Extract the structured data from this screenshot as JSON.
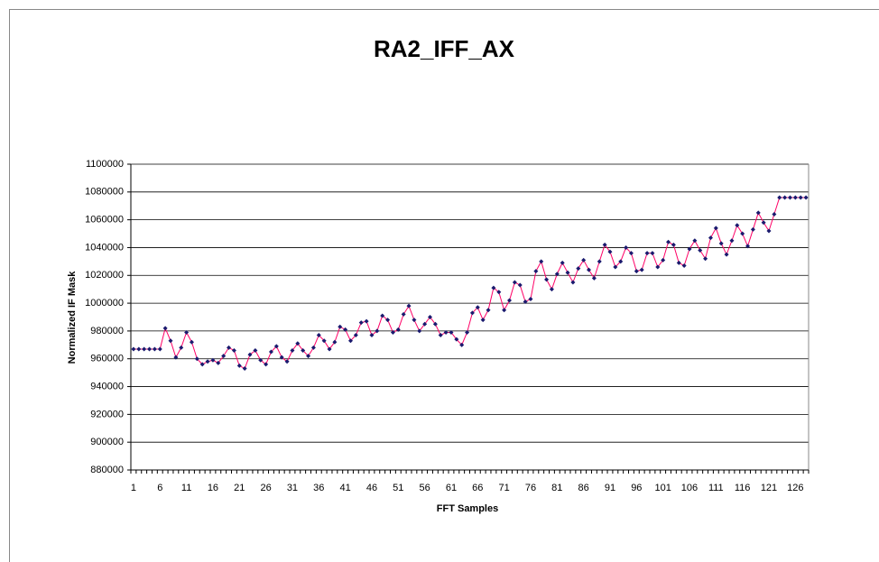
{
  "chart_data": {
    "type": "line",
    "title": "RA2_IFF_AX",
    "x_label": "FFT Samples",
    "y_label": "Normalized IF Mask",
    "categories": [
      "1",
      null,
      null,
      null,
      null,
      "6",
      null,
      null,
      null,
      null,
      "11",
      null,
      null,
      null,
      null,
      "16",
      null,
      null,
      null,
      null,
      "21",
      null,
      null,
      null,
      null,
      "26",
      null,
      null,
      null,
      null,
      "31",
      null,
      null,
      null,
      null,
      "36",
      null,
      null,
      null,
      null,
      "41",
      null,
      null,
      null,
      null,
      "46",
      null,
      null,
      null,
      null,
      "51",
      null,
      null,
      null,
      null,
      "56",
      null,
      null,
      null,
      null,
      "61",
      null,
      null,
      null,
      null,
      "66",
      null,
      null,
      null,
      null,
      "71",
      null,
      null,
      null,
      null,
      "76",
      null,
      null,
      null,
      null,
      "81",
      null,
      null,
      null,
      null,
      "86",
      null,
      null,
      null,
      null,
      "91",
      null,
      null,
      null,
      null,
      "96",
      null,
      null,
      null,
      null,
      "101",
      null,
      null,
      null,
      null,
      "106",
      null,
      null,
      null,
      null,
      "111",
      null,
      null,
      null,
      null,
      "116",
      null,
      null,
      null,
      null,
      "121",
      null,
      null,
      null,
      null,
      "126",
      null,
      null
    ],
    "series": [
      {
        "color": "#ff0066",
        "marker_color": "#1a1a6e",
        "values": [
          967000,
          967000,
          967000,
          967000,
          967000,
          967000,
          982000,
          973000,
          961000,
          968000,
          979000,
          972000,
          960000,
          956000,
          958000,
          959000,
          957000,
          962000,
          968000,
          966000,
          955000,
          953000,
          963000,
          966000,
          959000,
          956000,
          965000,
          969000,
          961000,
          958000,
          966000,
          971000,
          966000,
          962000,
          968000,
          977000,
          973000,
          967000,
          972000,
          983000,
          981000,
          973000,
          977000,
          986000,
          987000,
          977000,
          980000,
          991000,
          988000,
          979000,
          981000,
          992000,
          998000,
          988000,
          980000,
          985000,
          990000,
          985000,
          977000,
          979000,
          979000,
          974000,
          970000,
          979000,
          993000,
          997000,
          988000,
          995000,
          1011000,
          1008000,
          995000,
          1002000,
          1015000,
          1013000,
          1001000,
          1003000,
          1023000,
          1030000,
          1017000,
          1010000,
          1021000,
          1029000,
          1022000,
          1015000,
          1025000,
          1031000,
          1024000,
          1018000,
          1030000,
          1042000,
          1037000,
          1026000,
          1030000,
          1040000,
          1036000,
          1023000,
          1024000,
          1036000,
          1036000,
          1026000,
          1031000,
          1044000,
          1042000,
          1029000,
          1027000,
          1039000,
          1045000,
          1038000,
          1032000,
          1047000,
          1054000,
          1043000,
          1035000,
          1045000,
          1056000,
          1050000,
          1041000,
          1053000,
          1065000,
          1058000,
          1052000,
          1064000,
          1076000,
          1076000,
          1076000,
          1076000,
          1076000,
          1076000
        ]
      }
    ],
    "ylim": [
      880000,
      1100000
    ],
    "yticks": [
      880000,
      900000,
      920000,
      940000,
      960000,
      980000,
      1000000,
      1020000,
      1040000,
      1060000,
      1080000,
      1100000
    ],
    "grid": true
  }
}
